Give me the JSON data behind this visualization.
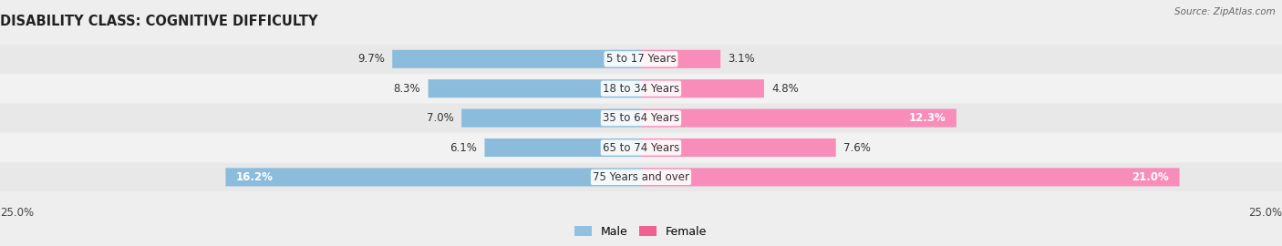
{
  "title": "DISABILITY CLASS: COGNITIVE DIFFICULTY",
  "source": "Source: ZipAtlas.com",
  "categories": [
    "5 to 17 Years",
    "18 to 34 Years",
    "35 to 64 Years",
    "65 to 74 Years",
    "75 Years and over"
  ],
  "male_values": [
    9.7,
    8.3,
    7.0,
    6.1,
    16.2
  ],
  "female_values": [
    3.1,
    4.8,
    12.3,
    7.6,
    21.0
  ],
  "male_color_bar": "#8bbcdc",
  "female_color_bar": "#f78db8",
  "male_color_legend": "#92c0e0",
  "female_color_legend": "#f06090",
  "axis_max": 25.0,
  "background_color": "#eeeeee",
  "row_bg_even": "#e8e8e8",
  "row_bg_odd": "#f2f2f2",
  "title_fontsize": 10.5,
  "label_fontsize": 8.5,
  "value_fontsize": 8.5,
  "legend_fontsize": 9,
  "large_val_threshold": 10
}
